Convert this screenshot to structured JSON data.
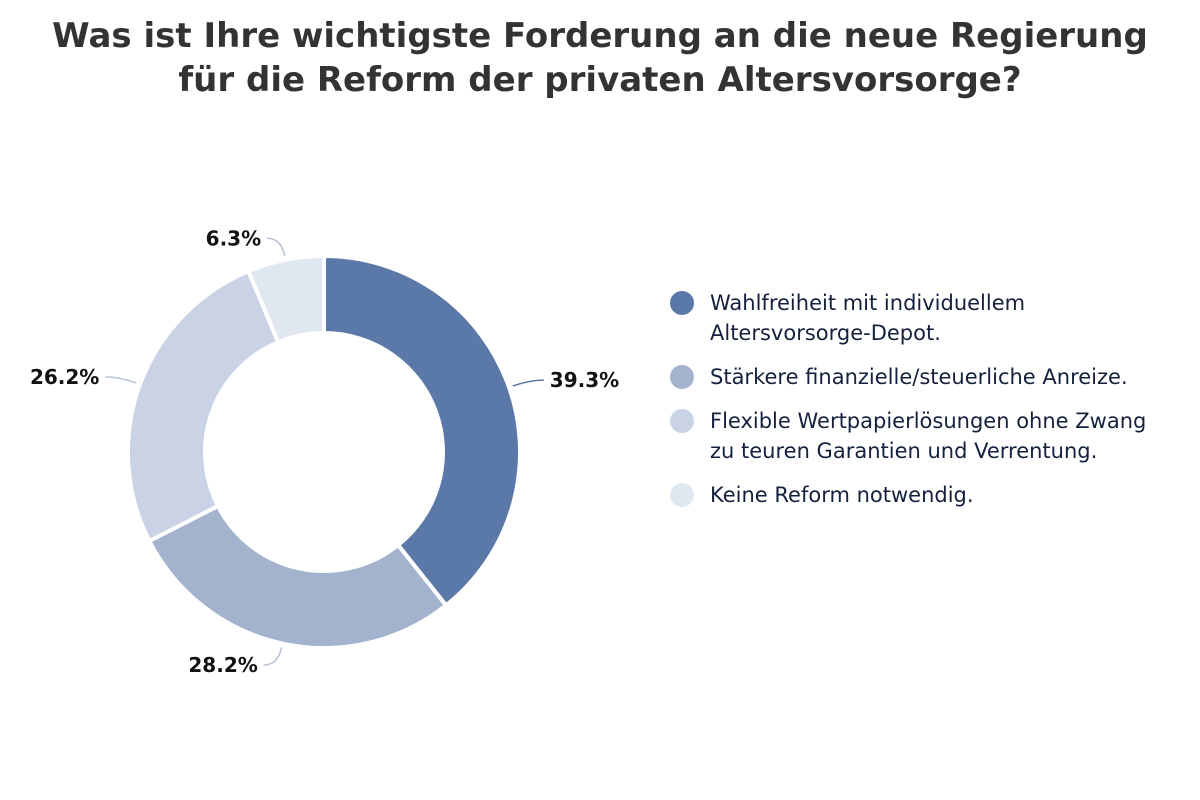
{
  "chart_data": {
    "type": "pie",
    "subtype": "donut",
    "title_lines": [
      "Was ist Ihre wichtigste Forderung an die neue Regierung",
      "für die Reform der privaten Altersvorsorge?"
    ],
    "legend_placement": "right",
    "slices": [
      {
        "label": "Wahlfreiheit mit individuellem\nAltersvorsorge-Depot.",
        "value": 39.3,
        "value_label": "39.3%",
        "color": "#5a78a8"
      },
      {
        "label": "Stärkere finanzielle/steuerliche Anreize.",
        "value": 28.2,
        "value_label": "28.2%",
        "color": "#a3b3ce"
      },
      {
        "label": "Flexible Wertpapierlösungen ohne Zwang\nzu teuren Garantien und Verrentung.",
        "value": 26.2,
        "value_label": "26.2%",
        "color": "#c9d3e5"
      },
      {
        "label": "Keine Reform notwendig.",
        "value": 6.3,
        "value_label": "6.3%",
        "color": "#e1e7f1"
      }
    ]
  }
}
